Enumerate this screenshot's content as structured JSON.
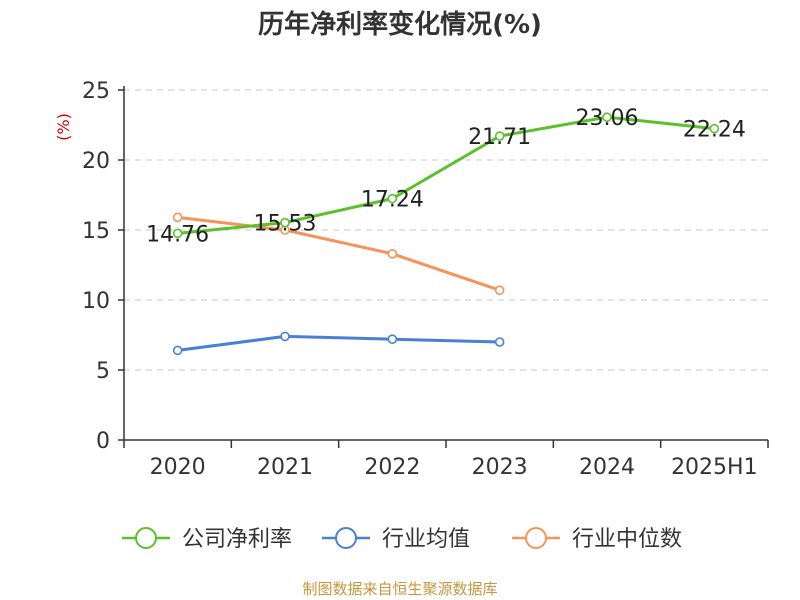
{
  "chart_data": {
    "type": "line",
    "title": "历年净利率变化情况(%)",
    "ylabel": "(%)",
    "categories": [
      "2020",
      "2021",
      "2022",
      "2023",
      "2024",
      "2025H1"
    ],
    "ylim": [
      0,
      25
    ],
    "yticks": [
      0,
      5,
      10,
      15,
      20,
      25
    ],
    "grid": true,
    "legend_position": "bottom",
    "series": [
      {
        "name": "公司净利率",
        "color": "#5cc02a",
        "values": [
          14.76,
          15.53,
          17.24,
          21.71,
          23.06,
          22.24
        ],
        "show_labels": true
      },
      {
        "name": "行业均值",
        "color": "#4a7fd6",
        "values": [
          6.4,
          7.4,
          7.2,
          7.0,
          null,
          null
        ],
        "show_labels": false
      },
      {
        "name": "行业中位数",
        "color": "#f5935a",
        "values": [
          15.9,
          15.0,
          13.3,
          10.7,
          null,
          null
        ],
        "show_labels": false
      }
    ],
    "source": "制图数据来自恒生聚源数据库"
  }
}
